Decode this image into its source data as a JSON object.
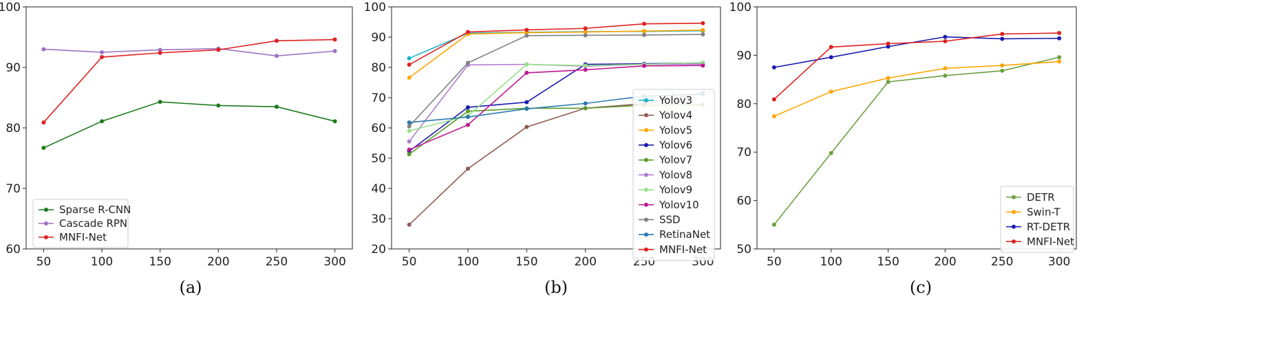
{
  "chart_data": [
    {
      "type": "line",
      "caption": "(a)",
      "x": [
        50,
        100,
        150,
        200,
        250,
        300
      ],
      "xticks": [
        "50",
        "100",
        "150",
        "200",
        "250",
        "300"
      ],
      "yticks": [
        "60",
        "70",
        "80",
        "90",
        "100"
      ],
      "ylim": [
        60,
        100
      ],
      "xlim": [
        35,
        315
      ],
      "legend_position": "bottom-left",
      "series": [
        {
          "name": "Sparse R-CNN",
          "color": "#1a7a1a",
          "values": [
            76.7,
            81.1,
            84.3,
            83.7,
            83.5,
            81.1
          ]
        },
        {
          "name": "Cascade RPN",
          "color": "#9b72c0",
          "values": [
            93.0,
            92.5,
            92.9,
            93.1,
            91.9,
            92.7
          ]
        },
        {
          "name": "MNFI-Net",
          "color": "#e02020",
          "values": [
            80.9,
            91.7,
            92.4,
            92.9,
            94.4,
            94.6
          ]
        }
      ]
    },
    {
      "type": "line",
      "caption": "(b)",
      "x": [
        50,
        100,
        150,
        200,
        250,
        300
      ],
      "xticks": [
        "50",
        "100",
        "150",
        "200",
        "250",
        "300"
      ],
      "yticks": [
        "20",
        "30",
        "40",
        "50",
        "60",
        "70",
        "80",
        "90",
        "100"
      ],
      "ylim": [
        20,
        100
      ],
      "xlim": [
        35,
        315
      ],
      "legend_position": "bottom-right",
      "series": [
        {
          "name": "Yolov3",
          "color": "#17b3c6",
          "values": [
            83.0,
            91.3,
            91.6,
            91.8,
            91.9,
            92.1
          ]
        },
        {
          "name": "Yolov4",
          "color": "#8c5a4e",
          "values": [
            28.0,
            46.5,
            60.3,
            66.5,
            68.0,
            71.5
          ]
        },
        {
          "name": "Yolov5",
          "color": "#ffa500",
          "values": [
            76.6,
            91.0,
            91.5,
            91.7,
            92.0,
            92.3
          ]
        },
        {
          "name": "Yolov6",
          "color": "#1a1ab0",
          "values": [
            52.3,
            66.8,
            68.5,
            81.0,
            81.2,
            81.5
          ]
        },
        {
          "name": "Yolov7",
          "color": "#5a9a2a",
          "values": [
            51.3,
            65.5,
            66.5,
            66.5,
            67.5,
            67.7
          ]
        },
        {
          "name": "Yolov8",
          "color": "#b07ad0",
          "values": [
            55.5,
            80.8,
            81.0,
            80.4,
            81.0,
            81.0
          ]
        },
        {
          "name": "Yolov9",
          "color": "#98df8a",
          "values": [
            59.0,
            64.0,
            81.0,
            80.6,
            81.0,
            81.6
          ]
        },
        {
          "name": "Yolov10",
          "color": "#c0168f",
          "values": [
            52.8,
            61.0,
            78.2,
            79.2,
            80.5,
            80.6
          ]
        },
        {
          "name": "SSD",
          "color": "#808080",
          "values": [
            60.5,
            81.5,
            90.5,
            90.6,
            90.7,
            90.9
          ]
        },
        {
          "name": "RetinaNet",
          "color": "#2878b0",
          "values": [
            61.8,
            63.6,
            66.3,
            68.1,
            70.5,
            71.2
          ]
        },
        {
          "name": "MNFI-Net",
          "color": "#e02020",
          "values": [
            80.9,
            91.7,
            92.4,
            92.9,
            94.4,
            94.6
          ]
        }
      ]
    },
    {
      "type": "line",
      "caption": "(c)",
      "x": [
        50,
        100,
        150,
        200,
        250,
        300
      ],
      "xticks": [
        "50",
        "100",
        "150",
        "200",
        "250",
        "300"
      ],
      "yticks": [
        "50",
        "60",
        "70",
        "80",
        "90",
        "100"
      ],
      "ylim": [
        50,
        100
      ],
      "xlim": [
        35,
        315
      ],
      "legend_position": "bottom-right",
      "series": [
        {
          "name": "DETR",
          "color": "#6aa040",
          "values": [
            55.0,
            69.8,
            84.5,
            85.8,
            86.8,
            89.6
          ]
        },
        {
          "name": "Swin-T",
          "color": "#ffa500",
          "values": [
            77.4,
            82.5,
            85.3,
            87.3,
            87.9,
            88.7
          ]
        },
        {
          "name": "RT-DETR",
          "color": "#1a1ab0",
          "values": [
            87.5,
            89.6,
            91.8,
            93.8,
            93.4,
            93.5
          ]
        },
        {
          "name": "MNFI-Net",
          "color": "#e02020",
          "values": [
            80.9,
            91.7,
            92.4,
            92.9,
            94.4,
            94.6
          ]
        }
      ]
    }
  ]
}
